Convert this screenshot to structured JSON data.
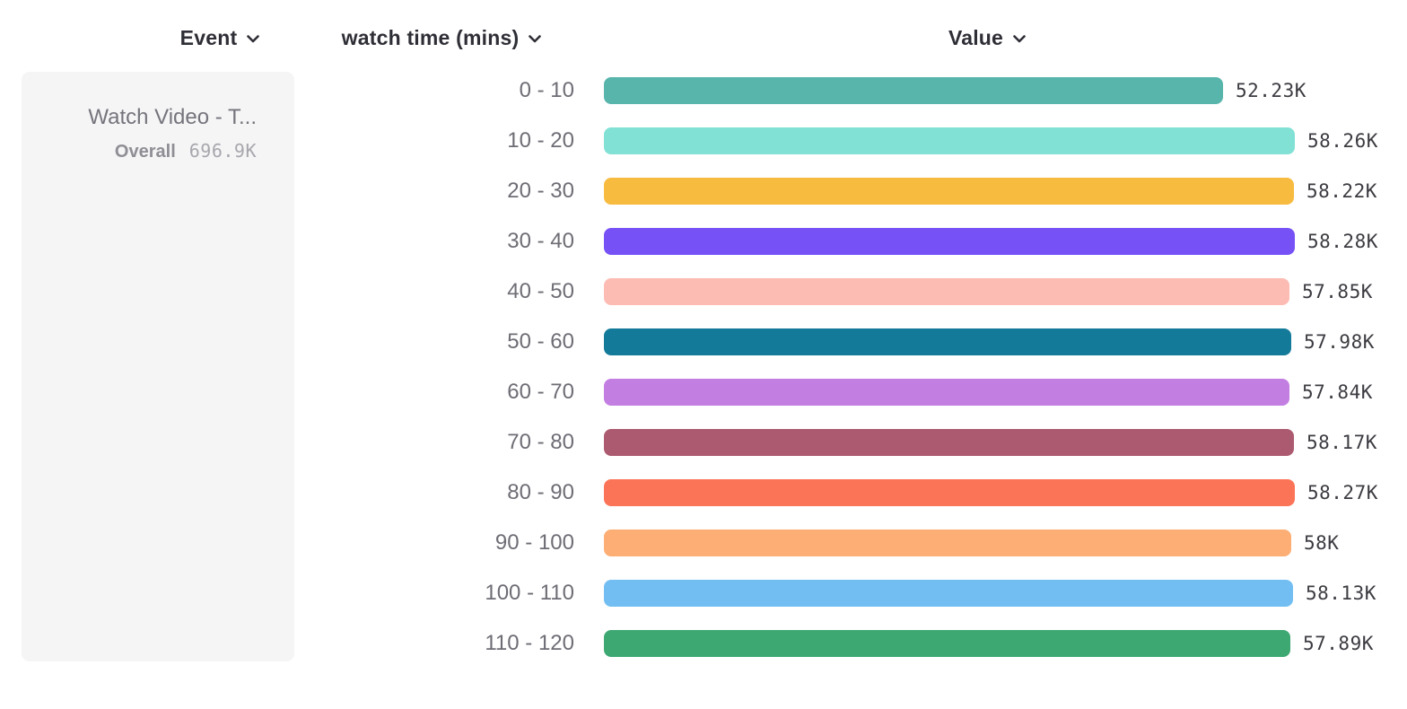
{
  "header": {
    "columns": [
      {
        "id": "event",
        "label": "Event"
      },
      {
        "id": "watch_time",
        "label": "watch time (mins)"
      },
      {
        "id": "value",
        "label": "Value"
      }
    ]
  },
  "event_card": {
    "title": "Watch Video - T...",
    "overall_label": "Overall",
    "overall_value": "696.9K"
  },
  "chart_data": {
    "type": "bar",
    "orientation": "horizontal",
    "title": "",
    "xlabel": "Value",
    "ylabel": "watch time (mins)",
    "xlim": [
      0,
      58.28
    ],
    "grid": false,
    "legend": false,
    "categories": [
      "0 - 10",
      "10 - 20",
      "20 - 30",
      "30 - 40",
      "40 - 50",
      "50 - 60",
      "60 - 70",
      "70 - 80",
      "80 - 90",
      "90 - 100",
      "100 - 110",
      "110 - 120"
    ],
    "values": [
      52.23,
      58.26,
      58.22,
      58.28,
      57.85,
      57.98,
      57.84,
      58.17,
      58.27,
      58.0,
      58.13,
      57.89
    ],
    "value_labels": [
      "52.23K",
      "58.26K",
      "58.22K",
      "58.28K",
      "57.85K",
      "57.98K",
      "57.84K",
      "58.17K",
      "58.27K",
      "58K",
      "58.13K",
      "57.89K"
    ],
    "bar_colors": [
      "#57B5AC",
      "#80E1D4",
      "#F7BB40",
      "#7551F6",
      "#FDBCB3",
      "#147A99",
      "#C37EE2",
      "#AC5A6F",
      "#FC7458",
      "#FCAE74",
      "#72BEF2",
      "#3EA873"
    ]
  },
  "colors": {
    "background": "#ffffff",
    "card_background": "#f5f5f6",
    "header_text": "#2e2e36",
    "category_text": "#6d6d75",
    "value_text": "#3b3b41",
    "card_title_text": "#74747c",
    "card_overall_text": "#8e8e94",
    "card_overall_value_text": "#a7a7ad"
  },
  "icons": {
    "chevron_down": "chevron-down"
  }
}
